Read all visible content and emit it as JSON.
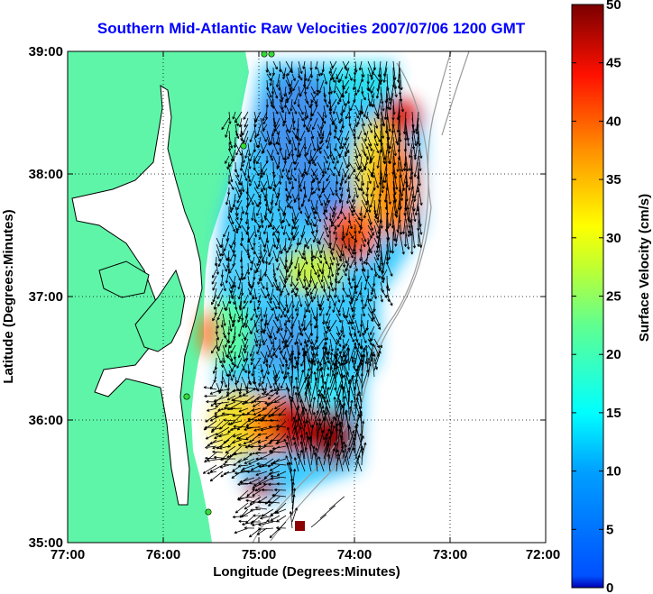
{
  "title": "Southern Mid-Atlantic Raw Velocities 2007/07/06 1200 GMT",
  "axes": {
    "xlabel": "Longitude (Degrees:Minutes)",
    "ylabel": "Latitude (Degrees:Minutes)",
    "xticks": [
      "77:00",
      "76:00",
      "75:00",
      "74:00",
      "73:00",
      "72:00"
    ],
    "yticks": [
      "39:00",
      "38:00",
      "37:00",
      "36:00",
      "35:00"
    ],
    "xlim": [
      -77,
      -72
    ],
    "ylim": [
      35,
      39
    ],
    "grid": true
  },
  "colorbar": {
    "label": "Surface Velocity (cm/s)",
    "ticks": [
      "50",
      "45",
      "40",
      "35",
      "30",
      "25",
      "20",
      "15",
      "10",
      "5",
      "0"
    ],
    "range": [
      0,
      50
    ],
    "colormap": "jet"
  },
  "colors": {
    "land": "#5ff5a8",
    "title": "#0000ff",
    "stations": "#33dd33",
    "bathymetry": "#999999"
  }
}
